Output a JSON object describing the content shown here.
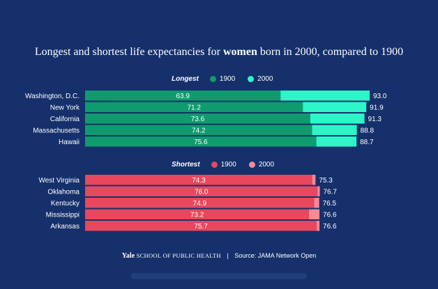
{
  "title_prefix": "Longest and shortest life expectancies for ",
  "title_bold": "women",
  "title_suffix": " born in 2000, compared to 1900",
  "colors": {
    "background": "#15306b",
    "longest_1900": "#0f9b6e",
    "longest_2000": "#2ef5c8",
    "shortest_1900": "#e8485e",
    "shortest_2000": "#f78b98"
  },
  "footer": {
    "yale": "Yale",
    "school": "SCHOOL OF PUBLIC HEALTH",
    "separator": "|",
    "source": "Source: JAMA Network Open"
  },
  "chart_data": [
    {
      "type": "bar",
      "title": "Longest",
      "legend": [
        "1900",
        "2000"
      ],
      "categories": [
        "Washington, D.C.",
        "New York",
        "California",
        "Massachusetts",
        "Hawaii"
      ],
      "series": [
        {
          "name": "1900",
          "values": [
            63.9,
            71.2,
            73.6,
            74.2,
            75.6
          ]
        },
        {
          "name": "2000",
          "values": [
            93.0,
            91.9,
            91.3,
            88.8,
            88.7
          ]
        }
      ],
      "labels_1900": [
        "63.9",
        "71.2",
        "73.6",
        "74.2",
        "75.6"
      ],
      "labels_2000": [
        "93.0",
        "91.9",
        "91.3",
        "88.8",
        "88.7"
      ],
      "xlim": [
        0,
        93
      ]
    },
    {
      "type": "bar",
      "title": "Shortest",
      "legend": [
        "1900",
        "2000"
      ],
      "categories": [
        "West Virginia",
        "Oklahoma",
        "Kentucky",
        "Mississippi",
        "Arkansas"
      ],
      "series": [
        {
          "name": "1900",
          "values": [
            74.3,
            76.0,
            74.9,
            73.2,
            75.7
          ]
        },
        {
          "name": "2000",
          "values": [
            75.3,
            76.7,
            76.5,
            76.6,
            76.6
          ]
        }
      ],
      "labels_1900": [
        "74.3",
        "76.0",
        "74.9",
        "73.2",
        "75.7"
      ],
      "labels_2000": [
        "75.3",
        "76.7",
        "76.5",
        "76.6",
        "76.6"
      ],
      "xlim": [
        0,
        93
      ]
    }
  ]
}
